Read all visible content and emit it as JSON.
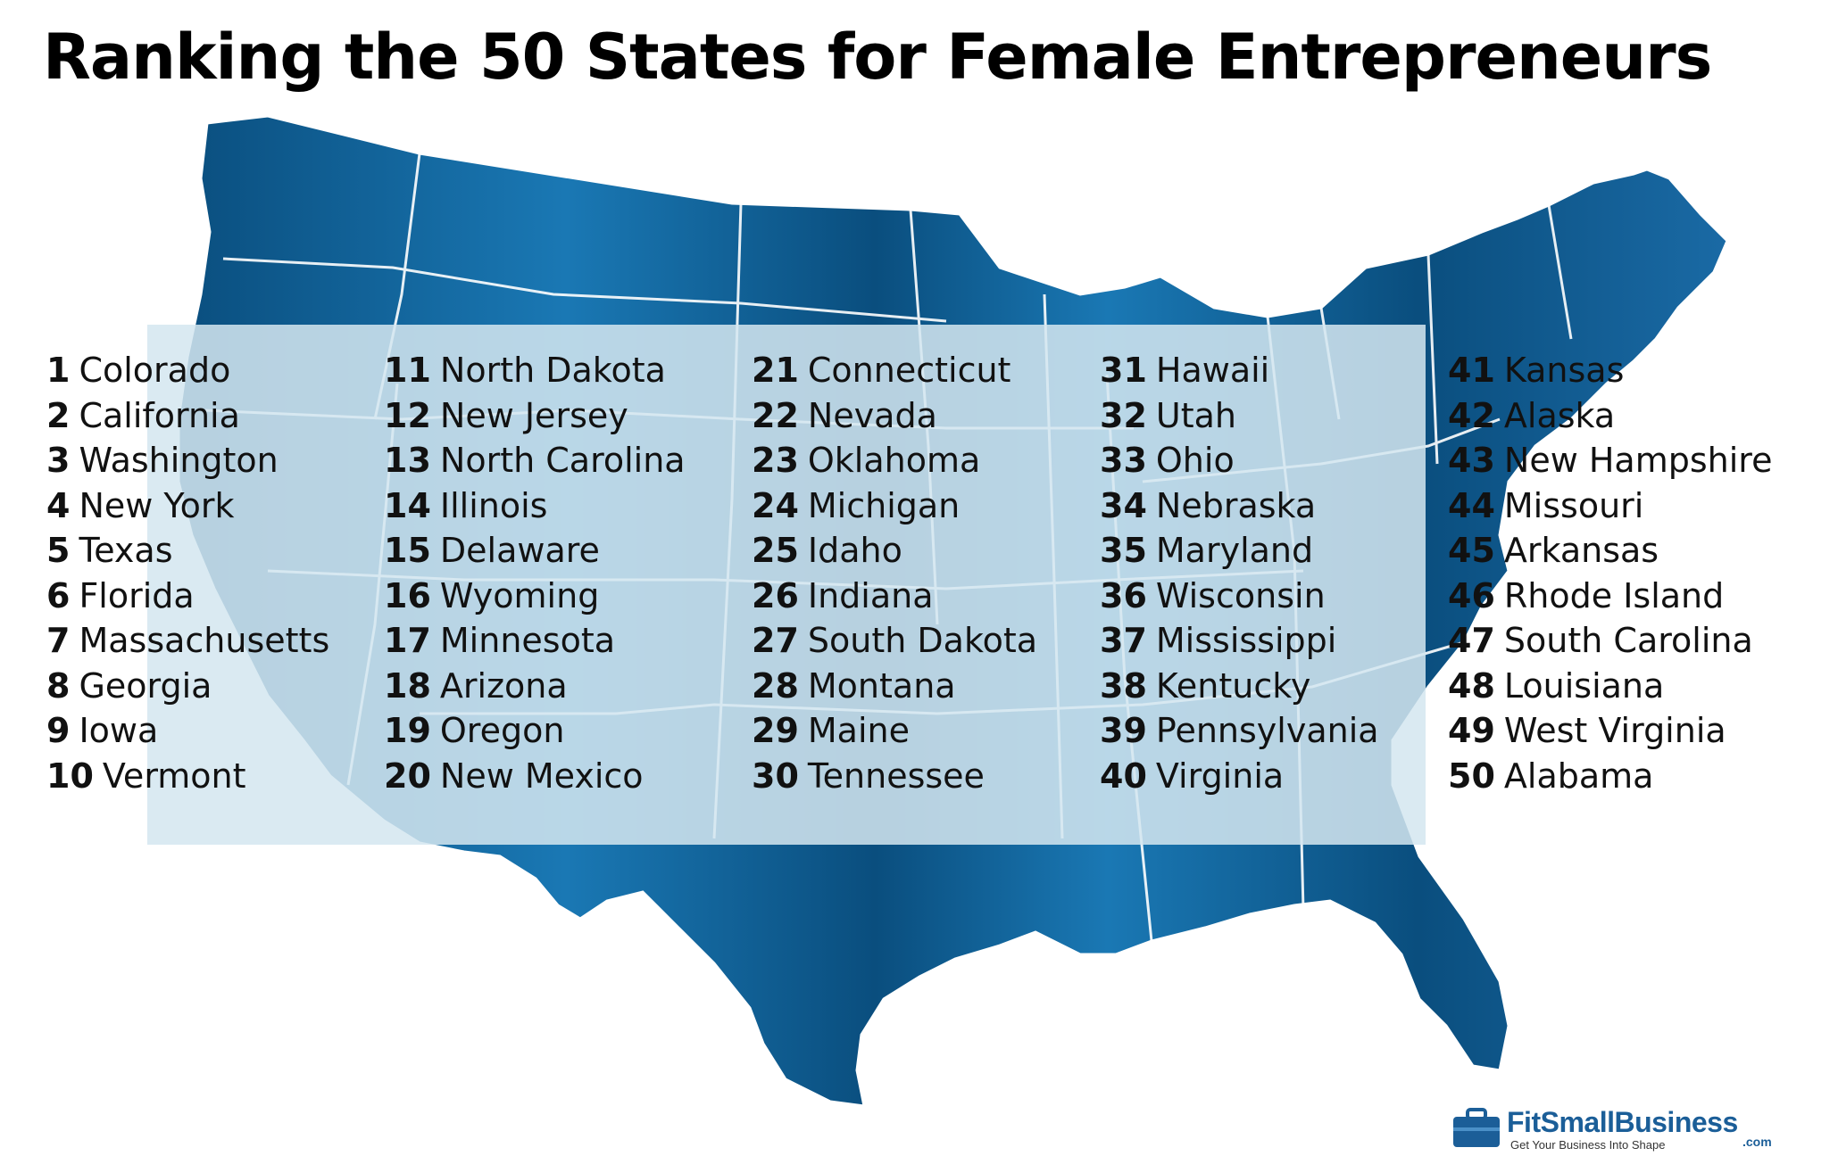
{
  "title": "Ranking the 50 States for Female Entrepreneurs",
  "colors": {
    "map_dark": "#0a4e7e",
    "map_light": "#1a78b4",
    "band": "#d4e6f0",
    "border": "#ffffff",
    "brand": "#1b5e98"
  },
  "columns": [
    [
      {
        "rank": "1",
        "state": "Colorado"
      },
      {
        "rank": "2",
        "state": "California"
      },
      {
        "rank": "3",
        "state": "Washington"
      },
      {
        "rank": "4",
        "state": "New York"
      },
      {
        "rank": "5",
        "state": "Texas"
      },
      {
        "rank": "6",
        "state": "Florida"
      },
      {
        "rank": "7",
        "state": "Massachusetts"
      },
      {
        "rank": "8",
        "state": "Georgia"
      },
      {
        "rank": "9",
        "state": "Iowa"
      },
      {
        "rank": "10",
        "state": "Vermont"
      }
    ],
    [
      {
        "rank": "11",
        "state": "North Dakota"
      },
      {
        "rank": "12",
        "state": "New Jersey"
      },
      {
        "rank": "13",
        "state": "North Carolina"
      },
      {
        "rank": "14",
        "state": "Illinois"
      },
      {
        "rank": "15",
        "state": "Delaware"
      },
      {
        "rank": "16",
        "state": "Wyoming"
      },
      {
        "rank": "17",
        "state": "Minnesota"
      },
      {
        "rank": "18",
        "state": "Arizona"
      },
      {
        "rank": "19",
        "state": "Oregon"
      },
      {
        "rank": "20",
        "state": "New Mexico"
      }
    ],
    [
      {
        "rank": "21",
        "state": "Connecticut"
      },
      {
        "rank": "22",
        "state": "Nevada"
      },
      {
        "rank": "23",
        "state": "Oklahoma"
      },
      {
        "rank": "24",
        "state": "Michigan"
      },
      {
        "rank": "25",
        "state": "Idaho"
      },
      {
        "rank": "26",
        "state": "Indiana"
      },
      {
        "rank": "27",
        "state": "South Dakota"
      },
      {
        "rank": "28",
        "state": "Montana"
      },
      {
        "rank": "29",
        "state": "Maine"
      },
      {
        "rank": "30",
        "state": "Tennessee"
      }
    ],
    [
      {
        "rank": "31",
        "state": "Hawaii"
      },
      {
        "rank": "32",
        "state": "Utah"
      },
      {
        "rank": "33",
        "state": "Ohio"
      },
      {
        "rank": "34",
        "state": "Nebraska"
      },
      {
        "rank": "35",
        "state": "Maryland"
      },
      {
        "rank": "36",
        "state": "Wisconsin"
      },
      {
        "rank": "37",
        "state": "Mississippi"
      },
      {
        "rank": "38",
        "state": "Kentucky"
      },
      {
        "rank": "39",
        "state": "Pennsylvania"
      },
      {
        "rank": "40",
        "state": "Virginia"
      }
    ],
    [
      {
        "rank": "41",
        "state": "Kansas"
      },
      {
        "rank": "42",
        "state": "Alaska"
      },
      {
        "rank": "43",
        "state": "New Hampshire"
      },
      {
        "rank": "44",
        "state": "Missouri"
      },
      {
        "rank": "45",
        "state": "Arkansas"
      },
      {
        "rank": "46",
        "state": "Rhode Island"
      },
      {
        "rank": "47",
        "state": "South Carolina"
      },
      {
        "rank": "48",
        "state": "Louisiana"
      },
      {
        "rank": "49",
        "state": "West Virginia"
      },
      {
        "rank": "50",
        "state": "Alabama"
      }
    ]
  ],
  "brand": {
    "name": "FitSmallBusiness",
    "tagline": "Get Your Business Into Shape",
    "suffix": ".com",
    "icon": "briefcase-icon"
  }
}
